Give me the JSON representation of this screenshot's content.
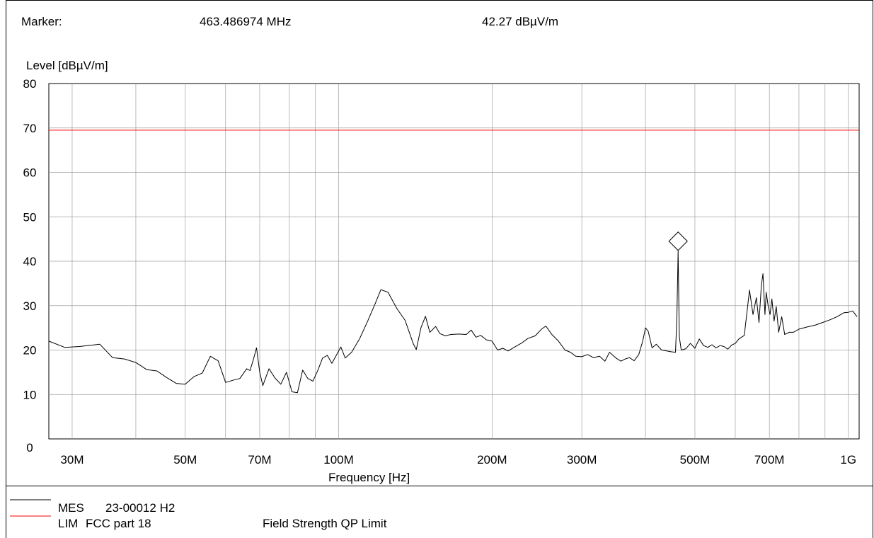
{
  "header": {
    "marker_label": "Marker:",
    "marker_freq": "463.486974 MHz",
    "marker_level": "42.27 dBµV/m"
  },
  "axis": {
    "ylabel": "Level [dBµV/m]",
    "xlabel": "Frequency [Hz]"
  },
  "legend": [
    {
      "key": "MES",
      "name": "23-00012 H2",
      "description": "",
      "color": "#000000"
    },
    {
      "key": "LIM",
      "name": "FCC part 18",
      "description": "Field Strength QP Limit",
      "color": "#ff0000"
    }
  ],
  "chart_data": {
    "type": "line",
    "x_scale": "log",
    "xlim_hz": [
      27000000,
      1050000000
    ],
    "ylim": [
      0,
      80
    ],
    "grid": true,
    "y_ticks": [
      0,
      10,
      20,
      30,
      40,
      50,
      60,
      70,
      80
    ],
    "x_tick_labels": [
      {
        "label": "30M",
        "hz": 30000000
      },
      {
        "label": "50M",
        "hz": 50000000
      },
      {
        "label": "70M",
        "hz": 70000000
      },
      {
        "label": "100M",
        "hz": 100000000
      },
      {
        "label": "200M",
        "hz": 200000000
      },
      {
        "label": "300M",
        "hz": 300000000
      },
      {
        "label": "500M",
        "hz": 500000000
      },
      {
        "label": "700M",
        "hz": 700000000
      },
      {
        "label": "1G",
        "hz": 1000000000
      }
    ],
    "x_gridlines_hz": [
      30000000,
      40000000,
      50000000,
      60000000,
      70000000,
      80000000,
      90000000,
      100000000,
      200000000,
      300000000,
      400000000,
      500000000,
      600000000,
      700000000,
      800000000,
      900000000,
      1000000000
    ],
    "series": [
      {
        "name": "MES 23-00012 H2",
        "color": "#000000",
        "points": [
          [
            27,
            22.0
          ],
          [
            29,
            20.6
          ],
          [
            31,
            20.8
          ],
          [
            34,
            21.3
          ],
          [
            36,
            18.3
          ],
          [
            38,
            18.0
          ],
          [
            40,
            17.2
          ],
          [
            42,
            15.6
          ],
          [
            44,
            15.3
          ],
          [
            46,
            13.8
          ],
          [
            48,
            12.5
          ],
          [
            50,
            12.3
          ],
          [
            52,
            14.0
          ],
          [
            54,
            14.8
          ],
          [
            56,
            18.6
          ],
          [
            58,
            17.6
          ],
          [
            60,
            12.7
          ],
          [
            62,
            13.2
          ],
          [
            64,
            13.6
          ],
          [
            66,
            15.8
          ],
          [
            67,
            15.4
          ],
          [
            68,
            17.8
          ],
          [
            69,
            20.5
          ],
          [
            70,
            15.0
          ],
          [
            71,
            12.0
          ],
          [
            73,
            15.8
          ],
          [
            75,
            13.7
          ],
          [
            77,
            12.3
          ],
          [
            79,
            15.0
          ],
          [
            81,
            10.6
          ],
          [
            83,
            10.4
          ],
          [
            85,
            15.5
          ],
          [
            87,
            13.6
          ],
          [
            89,
            13.0
          ],
          [
            91,
            15.4
          ],
          [
            93,
            18.2
          ],
          [
            95,
            18.8
          ],
          [
            97,
            17.0
          ],
          [
            101,
            20.7
          ],
          [
            103,
            18.2
          ],
          [
            106,
            19.5
          ],
          [
            110,
            22.6
          ],
          [
            114,
            26.5
          ],
          [
            118,
            30.5
          ],
          [
            121,
            33.6
          ],
          [
            125,
            33.0
          ],
          [
            130,
            29.4
          ],
          [
            135,
            26.7
          ],
          [
            140,
            21.5
          ],
          [
            142,
            20.1
          ],
          [
            145,
            25.0
          ],
          [
            148,
            27.6
          ],
          [
            151,
            24.0
          ],
          [
            155,
            25.3
          ],
          [
            158,
            23.7
          ],
          [
            162,
            23.2
          ],
          [
            166,
            23.5
          ],
          [
            172,
            23.6
          ],
          [
            178,
            23.5
          ],
          [
            182,
            24.5
          ],
          [
            186,
            22.9
          ],
          [
            190,
            23.3
          ],
          [
            195,
            22.3
          ],
          [
            200,
            22.0
          ],
          [
            205,
            20.0
          ],
          [
            210,
            20.4
          ],
          [
            215,
            19.8
          ],
          [
            220,
            20.5
          ],
          [
            228,
            21.5
          ],
          [
            235,
            22.6
          ],
          [
            243,
            23.2
          ],
          [
            250,
            24.7
          ],
          [
            255,
            25.4
          ],
          [
            262,
            23.5
          ],
          [
            270,
            22.0
          ],
          [
            278,
            20.0
          ],
          [
            285,
            19.5
          ],
          [
            292,
            18.6
          ],
          [
            300,
            18.5
          ],
          [
            308,
            19.0
          ],
          [
            316,
            18.3
          ],
          [
            325,
            18.6
          ],
          [
            333,
            17.5
          ],
          [
            340,
            19.5
          ],
          [
            350,
            18.2
          ],
          [
            358,
            17.5
          ],
          [
            365,
            18.0
          ],
          [
            372,
            18.3
          ],
          [
            380,
            17.6
          ],
          [
            388,
            19.0
          ],
          [
            395,
            22.0
          ],
          [
            400,
            25.0
          ],
          [
            405,
            24.2
          ],
          [
            412,
            20.5
          ],
          [
            420,
            21.3
          ],
          [
            430,
            20.0
          ],
          [
            440,
            19.8
          ],
          [
            450,
            19.6
          ],
          [
            458,
            19.5
          ],
          [
            461,
            27.6
          ],
          [
            463.49,
            42.27
          ],
          [
            466,
            23.0
          ],
          [
            470,
            20.0
          ],
          [
            480,
            20.3
          ],
          [
            490,
            21.5
          ],
          [
            500,
            20.4
          ],
          [
            510,
            22.5
          ],
          [
            520,
            21.0
          ],
          [
            530,
            20.6
          ],
          [
            540,
            21.2
          ],
          [
            550,
            20.5
          ],
          [
            560,
            21.0
          ],
          [
            570,
            20.8
          ],
          [
            580,
            20.2
          ],
          [
            590,
            21.1
          ],
          [
            600,
            21.5
          ],
          [
            610,
            22.5
          ],
          [
            625,
            23.3
          ],
          [
            640,
            33.5
          ],
          [
            650,
            28.0
          ],
          [
            660,
            31.8
          ],
          [
            668,
            26.2
          ],
          [
            675,
            34.5
          ],
          [
            680,
            37.2
          ],
          [
            686,
            28.0
          ],
          [
            690,
            33.0
          ],
          [
            696,
            30.0
          ],
          [
            702,
            28.0
          ],
          [
            708,
            31.5
          ],
          [
            715,
            26.5
          ],
          [
            722,
            29.8
          ],
          [
            730,
            24.0
          ],
          [
            740,
            27.5
          ],
          [
            750,
            23.5
          ],
          [
            765,
            24.0
          ],
          [
            780,
            24.0
          ],
          [
            800,
            24.7
          ],
          [
            830,
            25.2
          ],
          [
            860,
            25.6
          ],
          [
            890,
            26.2
          ],
          [
            920,
            26.8
          ],
          [
            950,
            27.5
          ],
          [
            980,
            28.4
          ],
          [
            1000,
            28.5
          ],
          [
            1020,
            28.8
          ],
          [
            1040,
            27.5
          ]
        ]
      },
      {
        "name": "LIM FCC part 18",
        "color": "#ff0000",
        "points": [
          [
            27,
            69.5
          ],
          [
            1050,
            69.5
          ]
        ]
      }
    ],
    "marker": {
      "freq_mhz": 463.486974,
      "level": 42.27
    }
  }
}
